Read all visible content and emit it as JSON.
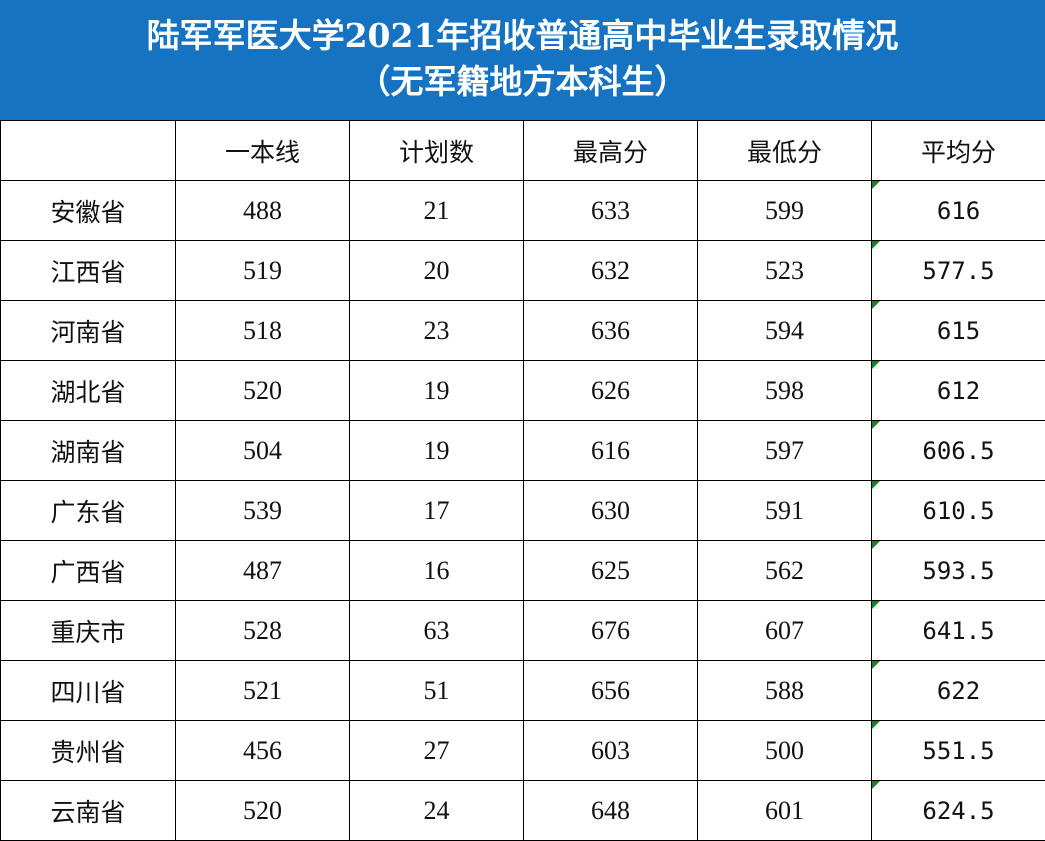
{
  "title": {
    "line1": "陆军军医大学2021年招收普通高中毕业生录取情况",
    "line2": "（无军籍地方本科生）"
  },
  "table": {
    "headers": [
      "",
      "一本线",
      "计划数",
      "最高分",
      "最低分",
      "平均分"
    ],
    "rows": [
      [
        "安徽省",
        "488",
        "21",
        "633",
        "599",
        "616"
      ],
      [
        "江西省",
        "519",
        "20",
        "632",
        "523",
        "577.5"
      ],
      [
        "河南省",
        "518",
        "23",
        "636",
        "594",
        "615"
      ],
      [
        "湖北省",
        "520",
        "19",
        "626",
        "598",
        "612"
      ],
      [
        "湖南省",
        "504",
        "19",
        "616",
        "597",
        "606.5"
      ],
      [
        "广东省",
        "539",
        "17",
        "630",
        "591",
        "610.5"
      ],
      [
        "广西省",
        "487",
        "16",
        "625",
        "562",
        "593.5"
      ],
      [
        "重庆市",
        "528",
        "63",
        "676",
        "607",
        "641.5"
      ],
      [
        "四川省",
        "521",
        "51",
        "656",
        "588",
        "622"
      ],
      [
        "贵州省",
        "456",
        "27",
        "603",
        "500",
        "551.5"
      ],
      [
        "云南省",
        "520",
        "24",
        "648",
        "601",
        "624.5"
      ]
    ]
  },
  "colors": {
    "banner_background": "#1573c1",
    "banner_text": "#ffffff",
    "grid_lines": "#000000",
    "cell_marker": "#1a7f2a"
  }
}
